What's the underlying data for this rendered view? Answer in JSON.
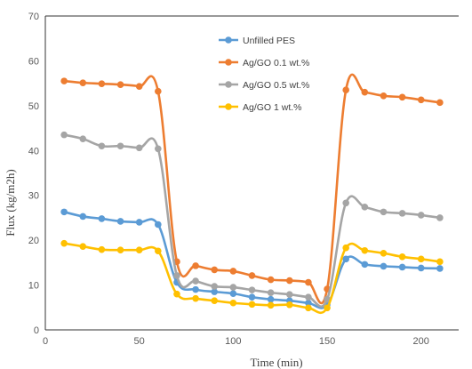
{
  "chart_data": {
    "type": "line",
    "xlabel": "Time (min)",
    "ylabel": "Flux (kg/m2h)",
    "xlim": [
      0,
      220
    ],
    "ylim": [
      0,
      70
    ],
    "x_ticks": [
      0,
      50,
      100,
      150,
      200
    ],
    "y_ticks": [
      0,
      10,
      20,
      30,
      40,
      50,
      60,
      70
    ],
    "grid": false,
    "legend_position": "top-center",
    "x": [
      10,
      20,
      30,
      40,
      50,
      60,
      70,
      80,
      90,
      100,
      110,
      120,
      130,
      140,
      150,
      160,
      170,
      180,
      190,
      200,
      210
    ],
    "series": [
      {
        "name": "Unfilled PES",
        "color": "#5B9BD5",
        "values": [
          26.3,
          25.3,
          24.8,
          24.2,
          24.0,
          23.5,
          10.6,
          9.0,
          8.5,
          8.1,
          7.3,
          6.8,
          6.5,
          6.0,
          5.6,
          15.8,
          14.6,
          14.2,
          14.0,
          13.8,
          13.7
        ]
      },
      {
        "name": "Ag/GO 0.1 wt.%",
        "color": "#ED7D31",
        "values": [
          55.5,
          55.1,
          54.9,
          54.7,
          54.3,
          53.2,
          15.2,
          14.3,
          13.4,
          13.1,
          12.1,
          11.2,
          11.0,
          10.6,
          9.1,
          53.5,
          53.0,
          52.2,
          51.9,
          51.3,
          50.7
        ]
      },
      {
        "name": "Ag/GO 0.5 wt.%",
        "color": "#A5A5A5",
        "values": [
          43.5,
          42.6,
          41.0,
          41.0,
          40.6,
          40.4,
          12.1,
          10.9,
          9.7,
          9.5,
          8.9,
          8.3,
          7.9,
          7.3,
          6.8,
          28.3,
          27.4,
          26.3,
          26.0,
          25.6,
          25.0
        ]
      },
      {
        "name": "Ag/GO 1 wt.%",
        "color": "#FFC000",
        "values": [
          19.3,
          18.6,
          17.9,
          17.8,
          17.8,
          17.6,
          8.0,
          7.0,
          6.5,
          6.0,
          5.7,
          5.5,
          5.6,
          4.9,
          4.9,
          18.3,
          17.7,
          17.1,
          16.3,
          15.8,
          15.2
        ]
      }
    ]
  }
}
